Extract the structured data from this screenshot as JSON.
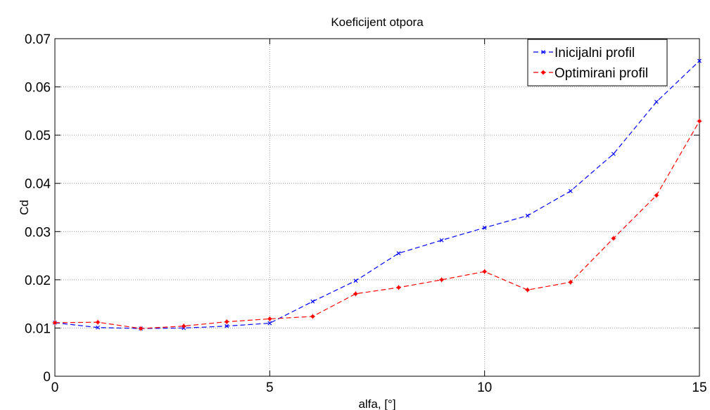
{
  "chart_data": {
    "type": "line",
    "title": "Koeficijent otpora",
    "xlabel": "alfa, [°]",
    "ylabel": "Cd",
    "xlim": [
      0,
      15
    ],
    "ylim": [
      0,
      0.07
    ],
    "xticks": [
      0,
      5,
      10,
      15
    ],
    "xtick_labels": [
      "0",
      "5",
      "10",
      "15"
    ],
    "yticks": [
      0,
      0.01,
      0.02,
      0.03,
      0.04,
      0.05,
      0.06,
      0.07
    ],
    "ytick_labels": [
      "0",
      "0.01",
      "0.02",
      "0.03",
      "0.04",
      "0.05",
      "0.06",
      "0.07"
    ],
    "grid": true,
    "legend_position": "top-right",
    "x": [
      0,
      1,
      2,
      3,
      4,
      5,
      6,
      7,
      8,
      9,
      10,
      11,
      12,
      13,
      14,
      15
    ],
    "series": [
      {
        "name": "Inicijalni profil",
        "color": "#0000ff",
        "marker": "x",
        "linestyle": "dashed",
        "values": [
          0.0111,
          0.0101,
          0.0099,
          0.01,
          0.0104,
          0.011,
          0.0155,
          0.0198,
          0.0255,
          0.0282,
          0.0308,
          0.0333,
          0.0384,
          0.0461,
          0.0569,
          0.0654
        ]
      },
      {
        "name": "Optimirani profil",
        "color": "#ff0000",
        "marker": "*",
        "linestyle": "dashed",
        "values": [
          0.0111,
          0.0112,
          0.0099,
          0.0104,
          0.0113,
          0.0119,
          0.0124,
          0.0171,
          0.0184,
          0.02,
          0.0217,
          0.0179,
          0.0195,
          0.0286,
          0.0375,
          0.0529
        ]
      }
    ]
  }
}
